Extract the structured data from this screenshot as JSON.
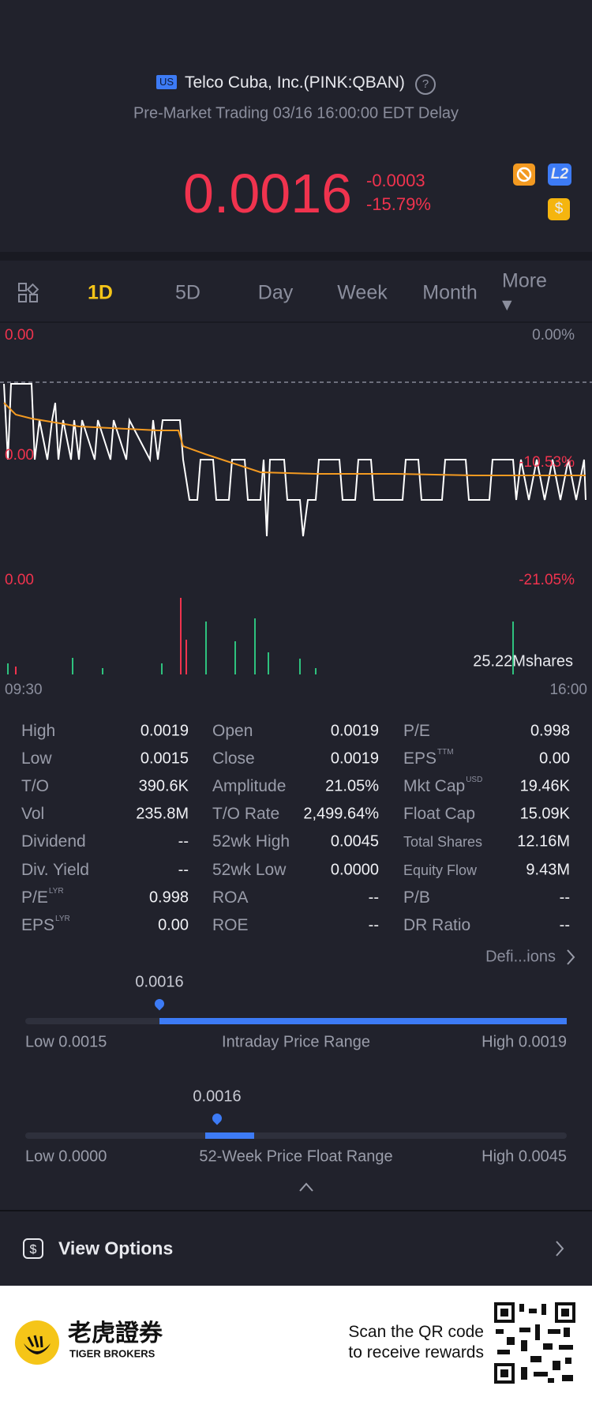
{
  "header": {
    "flag": "US",
    "title": "Telco Cuba, Inc.(PINK:QBAN)",
    "status": "Pre-Market Trading 03/16 16:00:00 EDT Delay"
  },
  "quote": {
    "price": "0.0016",
    "change": "-0.0003",
    "change_pct": "-15.79%",
    "badges": [
      "L2",
      "$"
    ]
  },
  "tabs": [
    "1D",
    "5D",
    "Day",
    "Week",
    "Month",
    "More ▾"
  ],
  "chart_labels": {
    "price_top": "0.00",
    "pct_top": "0.00%",
    "price_mid": "0.00",
    "pct_mid": "-10.53%",
    "price_bottom": "0.00",
    "pct_bottom": "-21.05%",
    "volume": "25.22Mshares",
    "time_start": "09:30",
    "time_end": "16:00"
  },
  "stats": [
    [
      {
        "label": "High",
        "value": "0.0019"
      },
      {
        "label": "Low",
        "value": "0.0015"
      },
      {
        "label": "T/O",
        "value": "390.6K"
      },
      {
        "label": "Vol",
        "value": "235.8M"
      },
      {
        "label": "Dividend",
        "value": "--"
      },
      {
        "label": "Div. Yield",
        "value": "--"
      },
      {
        "label": "P/E",
        "sup": "LYR",
        "value": "0.998"
      },
      {
        "label": "EPS",
        "sup": "LYR",
        "value": "0.00"
      }
    ],
    [
      {
        "label": "Open",
        "value": "0.0019"
      },
      {
        "label": "Close",
        "value": "0.0019"
      },
      {
        "label": "Amplitude",
        "value": "21.05%"
      },
      {
        "label": "T/O Rate",
        "value": "2,499.64%"
      },
      {
        "label": "52wk High",
        "value": "0.0045"
      },
      {
        "label": "52wk Low",
        "value": "0.0000"
      },
      {
        "label": "ROA",
        "value": "--"
      },
      {
        "label": "ROE",
        "value": "--"
      }
    ],
    [
      {
        "label": "P/E",
        "value": "0.998"
      },
      {
        "label": "EPS",
        "sup": "TTM",
        "value": "0.00"
      },
      {
        "label": "Mkt Cap",
        "sup": "USD",
        "value": "19.46K"
      },
      {
        "label": "Float Cap",
        "value": "15.09K"
      },
      {
        "label": "Total Shares",
        "value": "12.16M"
      },
      {
        "label": "Equity Flow",
        "value": "9.43M"
      },
      {
        "label": "P/B",
        "value": "--"
      },
      {
        "label": "DR Ratio",
        "value": "--"
      }
    ]
  ],
  "definitions": "Defi...ions",
  "ranges": [
    {
      "value": "0.0016",
      "low": "Low 0.0015",
      "title": "Intraday Price Range",
      "high": "High 0.0019"
    },
    {
      "value": "0.0016",
      "low": "Low 0.0000",
      "title": "52-Week Price Float Range",
      "high": "High 0.0045"
    }
  ],
  "options": "View Options",
  "footer": {
    "brand_cn": "老虎證券",
    "brand_en": "TIGER BROKERS",
    "scan": "Scan the QR code",
    "rewards": "to receive rewards"
  }
}
